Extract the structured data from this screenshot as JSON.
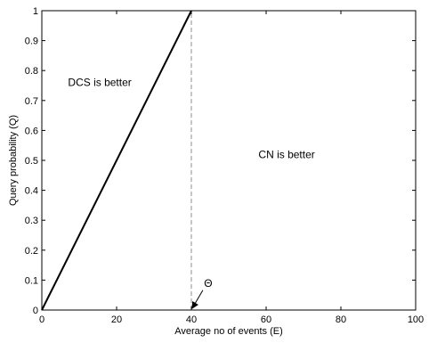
{
  "chart_data": {
    "type": "line",
    "title": "",
    "xlabel": "Average no of events (E)",
    "ylabel": "Query probability (Q)",
    "xlim": [
      0,
      100
    ],
    "ylim": [
      0,
      1
    ],
    "x_ticks": [
      0,
      20,
      40,
      60,
      80,
      100
    ],
    "y_ticks": [
      0,
      0.1,
      0.2,
      0.3,
      0.4,
      0.5,
      0.6,
      0.7,
      0.8,
      0.9,
      1
    ],
    "x_tick_labels": [
      "0",
      "20",
      "40",
      "60",
      "80",
      "100"
    ],
    "y_tick_labels": [
      "0",
      "0.1",
      "0.2",
      "0.3",
      "0.4",
      "0.5",
      "0.6",
      "0.7",
      "0.8",
      "0.9",
      "1"
    ],
    "grid": false,
    "series": [
      {
        "style": "solid",
        "color": "#000000",
        "x": [
          0,
          40
        ],
        "y": [
          0,
          1
        ]
      },
      {
        "style": "dashed",
        "color": "#8c8c8c",
        "x": [
          40,
          40
        ],
        "y": [
          0,
          1
        ]
      }
    ],
    "annotations": [
      {
        "text": "DCS is better",
        "x": 15.5,
        "y": 0.76
      },
      {
        "text": "CN is better",
        "x": 65.5,
        "y": 0.52
      },
      {
        "text": "Θ",
        "x": 44.5,
        "y": 0.09,
        "arrow_to": {
          "x": 40,
          "y": 0
        }
      }
    ]
  }
}
